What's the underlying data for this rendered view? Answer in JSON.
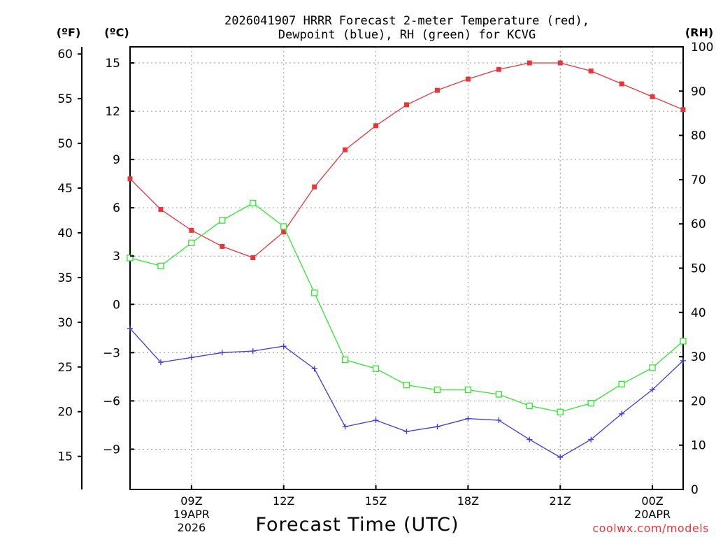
{
  "chart_data": {
    "type": "line",
    "title_line1": "2026041907 HRRR Forecast 2-meter Temperature (red),",
    "title_line2": "Dewpoint (blue), RH (green) for KCVG",
    "xlabel": "Forecast Time (UTC)",
    "unit_f": "(ºF)",
    "unit_c": "(ºC)",
    "unit_rh": "(RH)",
    "credit": "coolwx.com/models",
    "colors": {
      "temperature": "#e8353a",
      "dewpoint": "#3a3ae8",
      "rh": "#2ee82e"
    },
    "x_hours": [
      7,
      8,
      9,
      10,
      11,
      12,
      13,
      14,
      15,
      16,
      17,
      18,
      19,
      20,
      21,
      22,
      23,
      24,
      25
    ],
    "xlim": [
      7,
      25
    ],
    "x_ticks": [
      {
        "h": 9,
        "lines": [
          "09Z",
          "19APR",
          "2026"
        ]
      },
      {
        "h": 12,
        "lines": [
          "12Z"
        ]
      },
      {
        "h": 15,
        "lines": [
          "15Z"
        ]
      },
      {
        "h": 18,
        "lines": [
          "18Z"
        ]
      },
      {
        "h": 21,
        "lines": [
          "21Z"
        ]
      },
      {
        "h": 24,
        "lines": [
          "00Z",
          "20APR"
        ]
      }
    ],
    "ylim_c": [
      -11.5,
      16
    ],
    "yticks_c": [
      15,
      12,
      9,
      6,
      3,
      0,
      -3,
      -6,
      -9
    ],
    "yticks_f": [
      60,
      55,
      50,
      45,
      40,
      35,
      30,
      25,
      20,
      15
    ],
    "ylim_rh": [
      0,
      100
    ],
    "yticks_rh": [
      100,
      90,
      80,
      70,
      60,
      50,
      40,
      30,
      20,
      10,
      0
    ],
    "series": [
      {
        "name": "Temperature",
        "axis": "c",
        "marker": "filled-square",
        "colorKey": "temperature",
        "values": [
          7.8,
          5.9,
          4.6,
          3.6,
          2.9,
          4.5,
          7.3,
          9.6,
          11.1,
          12.4,
          13.3,
          14.0,
          14.6,
          15.0,
          15.0,
          14.5,
          13.7,
          12.9,
          12.1
        ]
      },
      {
        "name": "Dewpoint",
        "axis": "c",
        "marker": "plus",
        "colorKey": "dewpoint",
        "values": [
          -1.5,
          -3.6,
          -3.3,
          -3.0,
          -2.9,
          -2.6,
          -4.0,
          -7.6,
          -7.2,
          -7.9,
          -7.6,
          -7.1,
          -7.2,
          -8.4,
          -9.5,
          -8.4,
          -6.8,
          -5.3,
          -3.5
        ]
      },
      {
        "name": "RH",
        "axis": "rh",
        "marker": "open-square",
        "colorKey": "rh",
        "values": [
          52.3,
          50.5,
          55.7,
          60.8,
          64.7,
          59.4,
          44.4,
          29.3,
          27.3,
          23.6,
          22.5,
          22.5,
          21.5,
          18.9,
          17.5,
          19.5,
          23.8,
          27.5,
          33.5
        ]
      }
    ]
  }
}
